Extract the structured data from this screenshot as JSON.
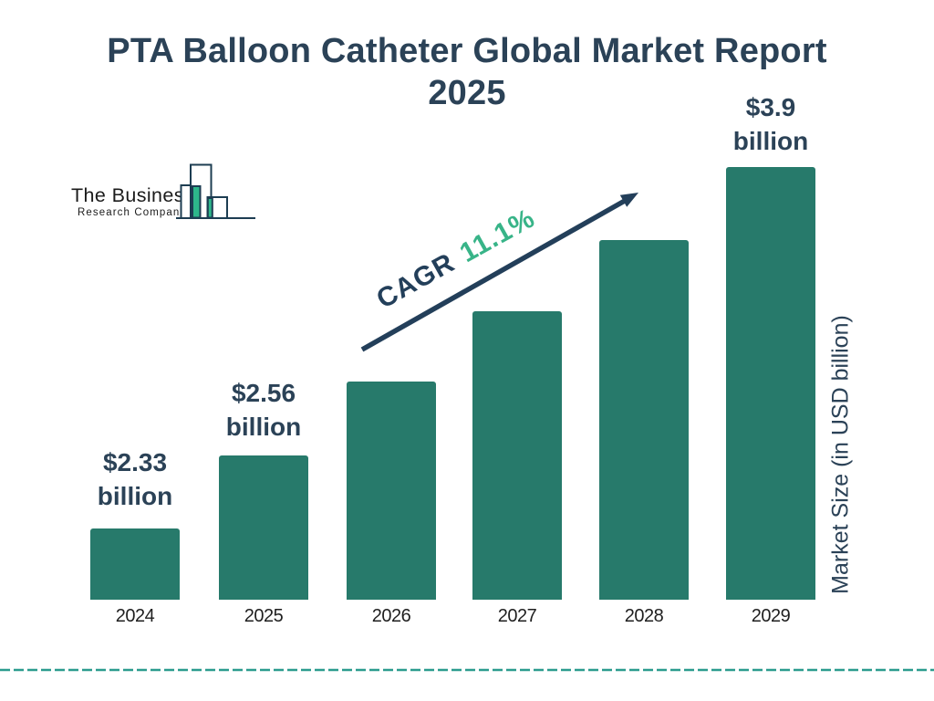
{
  "header": {
    "title_lines": [
      "PTA Balloon Catheter Global Market Report",
      "2025"
    ]
  },
  "logo": {
    "name": "The Business",
    "subname": "Research Company"
  },
  "chart_data": {
    "type": "bar",
    "title": "PTA Balloon Catheter Global Market Report 2025",
    "categories": [
      "2024",
      "2025",
      "2026",
      "2027",
      "2028",
      "2029"
    ],
    "values": [
      2.33,
      2.56,
      2.84,
      3.16,
      3.51,
      3.9
    ],
    "unit": "USD billion",
    "ylabel": "Market Size (in USD billion)",
    "xlabel": "",
    "grid": "off",
    "legend": "none",
    "value_labels": [
      {
        "category": "2024",
        "line1": "$2.33",
        "line2": "billion"
      },
      {
        "category": "2025",
        "line1": "$2.56",
        "line2": "billion"
      },
      {
        "category": "2029",
        "line1": "$3.9",
        "line2": "billion"
      }
    ],
    "annotation": {
      "label": "CAGR",
      "value": "11.1%"
    },
    "colors": {
      "bar": "#277a6b",
      "title_navy": "#2b4257",
      "arrow_navy": "#233f5a",
      "accent_green": "#38b488",
      "logo_green": "#2db78b",
      "logo_outline": "#1d3d52",
      "dashed_line": "#2b9c8e",
      "year_label": "#1f1f1f"
    }
  }
}
